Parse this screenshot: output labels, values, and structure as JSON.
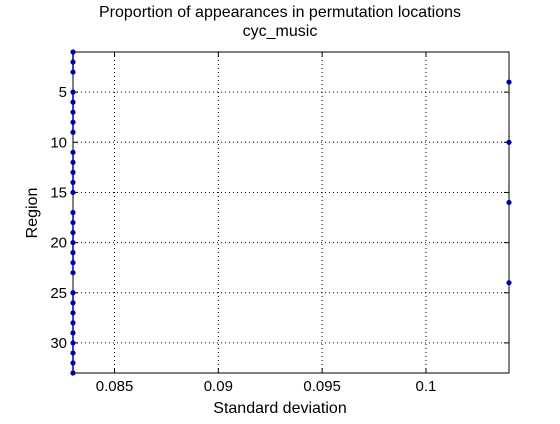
{
  "chart_data": {
    "type": "scatter",
    "title": [
      "Proportion of appearances in permutation locations",
      "cyc_music"
    ],
    "xlabel": "Standard deviation",
    "ylabel": "Region",
    "xlim": [
      0.083,
      0.104
    ],
    "ylim": [
      1,
      33
    ],
    "y_reversed": true,
    "grid": true,
    "xticks": [
      0.085,
      0.09,
      0.095,
      0.1
    ],
    "xtick_labels": [
      "0.085",
      "0.09",
      "0.095",
      "0.1"
    ],
    "yticks": [
      5,
      10,
      15,
      20,
      25,
      30
    ],
    "ytick_labels": [
      "5",
      "10",
      "15",
      "20",
      "25",
      "30"
    ],
    "marker_color": "#0000aa",
    "series": [
      {
        "x": [
          0.083,
          0.083,
          0.083,
          0.104,
          0.083,
          0.083,
          0.083,
          0.083,
          0.083,
          0.104,
          0.083,
          0.083,
          0.083,
          0.083,
          0.083,
          0.104,
          0.083,
          0.083,
          0.083,
          0.083,
          0.083,
          0.083,
          0.083,
          0.104,
          0.083,
          0.083,
          0.083,
          0.083,
          0.083,
          0.083,
          0.083,
          0.083,
          0.083
        ],
        "y": [
          1,
          2,
          3,
          4,
          5,
          6,
          7,
          8,
          9,
          10,
          11,
          12,
          13,
          14,
          15,
          16,
          17,
          18,
          19,
          20,
          21,
          22,
          23,
          24,
          25,
          26,
          27,
          28,
          29,
          30,
          31,
          32,
          33
        ]
      }
    ]
  }
}
